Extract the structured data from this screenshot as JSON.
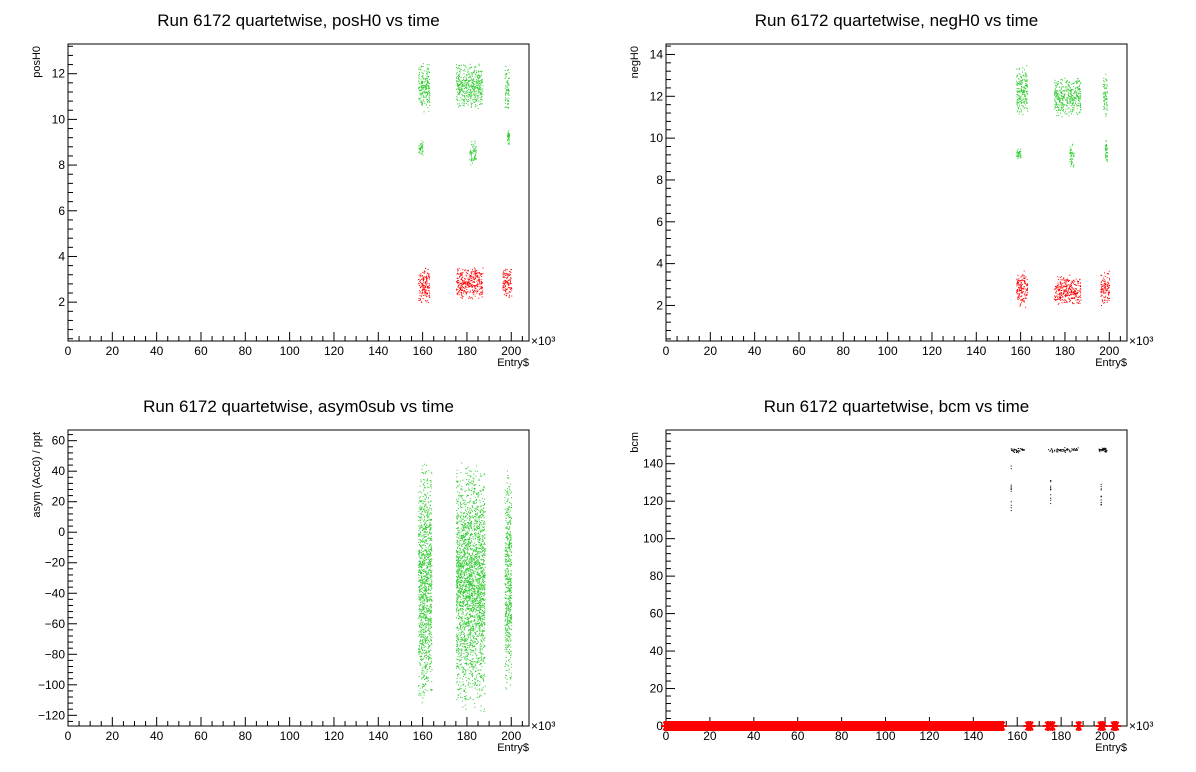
{
  "chart_data": [
    {
      "type": "scatter",
      "title": "Run 6172 quartetwise, posH0 vs time",
      "xlabel": "Entry$",
      "ylabel": "posH0",
      "x_multiplier_label": "×10³",
      "xlim": [
        0,
        208
      ],
      "ylim": [
        0.3,
        13.3
      ],
      "xticks": [
        0,
        20,
        40,
        60,
        80,
        100,
        120,
        140,
        160,
        180,
        200
      ],
      "yticks": [
        2,
        4,
        6,
        8,
        10,
        12
      ],
      "series": [
        {
          "color": "#33cc33",
          "clusters": [
            {
              "x": [
                158,
                163
              ],
              "y": [
                10.3,
                12.6
              ]
            },
            {
              "x": [
                175,
                187
              ],
              "y": [
                10.4,
                12.5
              ]
            },
            {
              "x": [
                197,
                199
              ],
              "y": [
                10.3,
                12.4
              ]
            },
            {
              "x": [
                158,
                160
              ],
              "y": [
                8.4,
                9.1
              ]
            },
            {
              "x": [
                181,
                184
              ],
              "y": [
                8.0,
                9.2
              ]
            },
            {
              "x": [
                198,
                199
              ],
              "y": [
                8.9,
                9.6
              ]
            }
          ]
        },
        {
          "color": "#ff0000",
          "clusters": [
            {
              "x": [
                158,
                163
              ],
              "y": [
                1.9,
                3.6
              ]
            },
            {
              "x": [
                175,
                187
              ],
              "y": [
                2.1,
                3.6
              ]
            },
            {
              "x": [
                196,
                200
              ],
              "y": [
                2.1,
                3.6
              ]
            }
          ]
        }
      ]
    },
    {
      "type": "scatter",
      "title": "Run 6172 quartetwise, negH0 vs time",
      "xlabel": "Entry$",
      "ylabel": "negH0",
      "x_multiplier_label": "×10³",
      "xlim": [
        0,
        208
      ],
      "ylim": [
        0.3,
        14.5
      ],
      "xticks": [
        0,
        20,
        40,
        60,
        80,
        100,
        120,
        140,
        160,
        180,
        200
      ],
      "yticks": [
        2,
        4,
        6,
        8,
        10,
        12,
        14
      ],
      "series": [
        {
          "color": "#33cc33",
          "clusters": [
            {
              "x": [
                158,
                163
              ],
              "y": [
                11.0,
                13.6
              ]
            },
            {
              "x": [
                175,
                187
              ],
              "y": [
                11.0,
                13.0
              ]
            },
            {
              "x": [
                197,
                199
              ],
              "y": [
                11.0,
                13.1
              ]
            },
            {
              "x": [
                158,
                160
              ],
              "y": [
                9.0,
                9.6
              ]
            },
            {
              "x": [
                182,
                184
              ],
              "y": [
                8.3,
                9.8
              ]
            },
            {
              "x": [
                198,
                199
              ],
              "y": [
                8.8,
                10.0
              ]
            }
          ]
        },
        {
          "color": "#ff0000",
          "clusters": [
            {
              "x": [
                158,
                163
              ],
              "y": [
                1.9,
                3.7
              ]
            },
            {
              "x": [
                175,
                187
              ],
              "y": [
                2.0,
                3.5
              ]
            },
            {
              "x": [
                196,
                200
              ],
              "y": [
                2.0,
                3.7
              ]
            }
          ]
        }
      ]
    },
    {
      "type": "scatter",
      "title": "Run 6172 quartetwise, asym0sub vs time",
      "xlabel": "Entry$",
      "ylabel": "asym (Acc0) / ppt",
      "x_multiplier_label": "×10³",
      "xlim": [
        0,
        208
      ],
      "ylim": [
        -127,
        67
      ],
      "xticks": [
        0,
        20,
        40,
        60,
        80,
        100,
        120,
        140,
        160,
        180,
        200
      ],
      "yticks": [
        -120,
        -100,
        -80,
        -60,
        -40,
        -20,
        0,
        20,
        40,
        60
      ],
      "series": [
        {
          "color": "#33cc33",
          "clusters": [
            {
              "x": [
                158,
                164
              ],
              "y": [
                -118,
                50
              ]
            },
            {
              "x": [
                175,
                188
              ],
              "y": [
                -118,
                48
              ]
            },
            {
              "x": [
                197,
                200
              ],
              "y": [
                -110,
                43
              ]
            }
          ]
        }
      ]
    },
    {
      "type": "scatter",
      "title": "Run 6172 quartetwise, bcm vs time",
      "xlabel": "Entry$",
      "ylabel": "bcm",
      "x_multiplier_label": "×10³",
      "xlim": [
        0,
        210
      ],
      "ylim": [
        0,
        158
      ],
      "xticks": [
        0,
        20,
        40,
        60,
        80,
        100,
        120,
        140,
        160,
        180,
        200
      ],
      "yticks": [
        0,
        20,
        40,
        60,
        80,
        100,
        120,
        140
      ],
      "series": [
        {
          "color": "#000000",
          "clusters": [
            {
              "x": [
                157,
                163
              ],
              "y": [
                146,
                149
              ]
            },
            {
              "x": [
                174,
                188
              ],
              "y": [
                146,
                149
              ]
            },
            {
              "x": [
                197,
                201
              ],
              "y": [
                146,
                149
              ]
            }
          ],
          "dropouts": [
            {
              "x": 157,
              "y": [
                115,
                140
              ]
            },
            {
              "x": 175,
              "y": [
                118,
                132
              ]
            },
            {
              "x": 198,
              "y": [
                118,
                132
              ]
            }
          ]
        },
        {
          "color": "#ff0000",
          "marker": "star",
          "baseline_x": [
            0,
            153
          ],
          "y": 0,
          "points_x": [
            165,
            166,
            174,
            176,
            188,
            198,
            199,
            204,
            205
          ]
        }
      ]
    }
  ]
}
